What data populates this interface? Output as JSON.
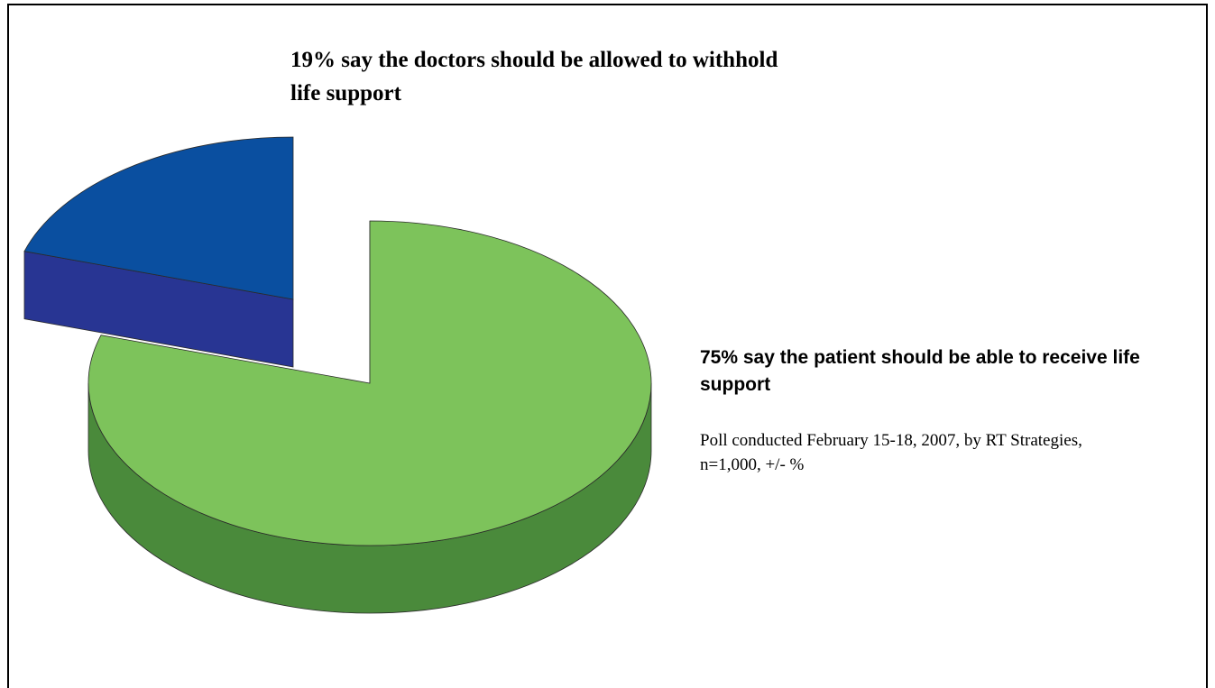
{
  "chart_data": {
    "type": "pie",
    "style": "3d-exploded",
    "legend": "none",
    "slices": [
      {
        "label": "19% say the doctors should be allowed to withhold life support",
        "value": 19,
        "color": "#0a4fa0",
        "side_color": "#283593"
      },
      {
        "label": "75% say the patient should be able to receive life support",
        "value": 75,
        "color": "#7dc35b",
        "side_color": "#4a8a3b"
      }
    ],
    "annotations": [
      "Poll conducted February 15-18, 2007, by RT Strategies, n=1,000, +/- %"
    ]
  }
}
